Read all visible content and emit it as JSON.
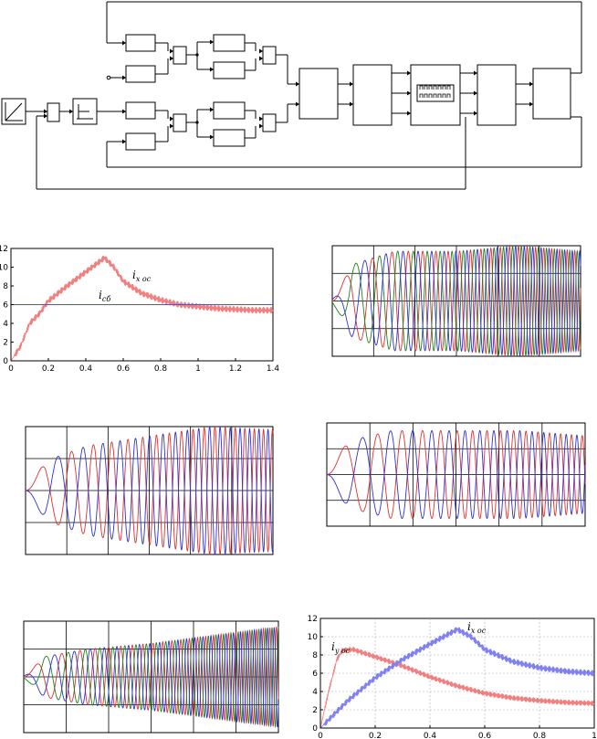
{
  "diagram": {
    "blocks": [
      "ramp-source",
      "sum-1",
      "step-source",
      "t1a",
      "t1b",
      "s1",
      "t2a",
      "t2b",
      "s2",
      "t3a",
      "t3b",
      "s3",
      "t4a",
      "t4b",
      "s4",
      "mux",
      "transform",
      "bridge",
      "load-a",
      "load-b"
    ],
    "bridge_symbol": "switch-matrix"
  },
  "chart_data": [
    {
      "id": "chart-1",
      "type": "line",
      "x_ticks": [
        "0",
        "0.2",
        "0.4",
        "0.6",
        "0.8",
        "1",
        "1.2",
        "1.4"
      ],
      "y_ticks": [
        "0",
        "2",
        "4",
        "6",
        "8",
        "10",
        "12"
      ],
      "xlim": [
        0,
        1.4
      ],
      "ylim": [
        0,
        12
      ],
      "grid": false,
      "annotations": [
        {
          "label": "i",
          "sub": "x oc"
        },
        {
          "label": "i",
          "sub": "cб"
        }
      ],
      "series": [
        {
          "color": "#f08080",
          "x": [
            0,
            0.05,
            0.1,
            0.15,
            0.2,
            0.3,
            0.4,
            0.5,
            0.55,
            0.6,
            0.7,
            0.8,
            0.9,
            1.0,
            1.1,
            1.2,
            1.3,
            1.4
          ],
          "y": [
            0,
            1.5,
            4,
            5,
            6.4,
            8,
            9.5,
            11,
            10,
            8.5,
            7.2,
            6.5,
            6.0,
            5.8,
            5.6,
            5.5,
            5.4,
            5.4
          ],
          "ripple": 0.35
        },
        {
          "color": "#5050e0",
          "x": [
            0,
            1.4
          ],
          "y": [
            6,
            6
          ],
          "ripple": 0
        }
      ]
    },
    {
      "id": "chart-2",
      "type": "line",
      "phases": 3,
      "colors": [
        "#e03030",
        "#208020",
        "#3030d0"
      ],
      "grid": true,
      "vgrid": 6,
      "hgrid": 4,
      "envelope": [
        0.55,
        0.9,
        0.9,
        1.0,
        0.9
      ],
      "freq_start": 2.5,
      "freq_end": 34
    },
    {
      "id": "chart-3",
      "type": "line",
      "phases": 2,
      "colors": [
        "#e03030",
        "#3030d0"
      ],
      "grid": true,
      "vgrid": 6,
      "hgrid": 4,
      "envelope": [
        0.35,
        0.7,
        0.85,
        1.0,
        0.95
      ],
      "freq_start": 2,
      "freq_end": 28
    },
    {
      "id": "chart-4",
      "type": "line",
      "phases": 2,
      "colors": [
        "#e03030",
        "#3030d0"
      ],
      "grid": true,
      "vgrid": 6,
      "hgrid": 4,
      "envelope": [
        0.55,
        0.85,
        0.85,
        0.85,
        0.75
      ],
      "freq_start": 2,
      "freq_end": 25
    },
    {
      "id": "chart-5",
      "type": "line",
      "phases": 3,
      "colors": [
        "#e03030",
        "#208020",
        "#3030d0"
      ],
      "grid": true,
      "vgrid": 6,
      "hgrid": 4,
      "envelope": [
        0.3,
        0.5,
        0.6,
        0.75,
        0.9
      ],
      "freq_start": 2.5,
      "freq_end": 40
    },
    {
      "id": "chart-6",
      "type": "line",
      "x_ticks": [
        "0",
        "0.2",
        "0.4",
        "0.6",
        "0.8",
        "1"
      ],
      "y_ticks": [
        "0",
        "2",
        "4",
        "6",
        "8",
        "10",
        "12"
      ],
      "xlim": [
        0,
        1
      ],
      "ylim": [
        0,
        12
      ],
      "grid": true,
      "annotations": [
        {
          "label": "i",
          "sub": "y oc"
        },
        {
          "label": "i",
          "sub": "x oc"
        }
      ],
      "series": [
        {
          "color": "#f08080",
          "x": [
            0,
            0.03,
            0.06,
            0.08,
            0.12,
            0.2,
            0.3,
            0.4,
            0.5,
            0.6,
            0.7,
            0.8,
            0.9,
            1.0
          ],
          "y": [
            0,
            4,
            7.5,
            8.5,
            8.6,
            7.8,
            6.8,
            5.6,
            4.6,
            3.8,
            3.3,
            3.0,
            2.8,
            2.7
          ],
          "ripple": 0.3
        },
        {
          "color": "#8080f0",
          "x": [
            0,
            0.05,
            0.1,
            0.2,
            0.3,
            0.4,
            0.5,
            0.55,
            0.6,
            0.7,
            0.8,
            0.9,
            1.0
          ],
          "y": [
            0,
            1.5,
            3,
            5.5,
            7.5,
            9.2,
            10.8,
            10,
            8.6,
            7.3,
            6.6,
            6.2,
            6.0
          ],
          "ripple": 0.35
        }
      ]
    }
  ]
}
